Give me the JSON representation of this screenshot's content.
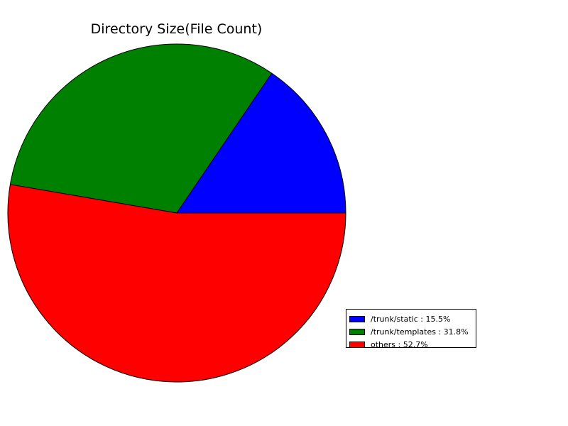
{
  "chart_data": {
    "type": "pie",
    "title": "Directory Size(File Count)",
    "slices": [
      {
        "label": "/trunk/static",
        "value": 15.5,
        "color": "#0000ff",
        "legend": "/trunk/static : 15.5%"
      },
      {
        "label": "/trunk/templates",
        "value": 31.8,
        "color": "#008000",
        "legend": "/trunk/templates : 31.8%"
      },
      {
        "label": "others",
        "value": 52.7,
        "color": "#ff0000",
        "legend": "others : 52.7%"
      }
    ],
    "start_angle_deg": 0,
    "direction": "counterclockwise",
    "legend_position": "lower-right"
  }
}
